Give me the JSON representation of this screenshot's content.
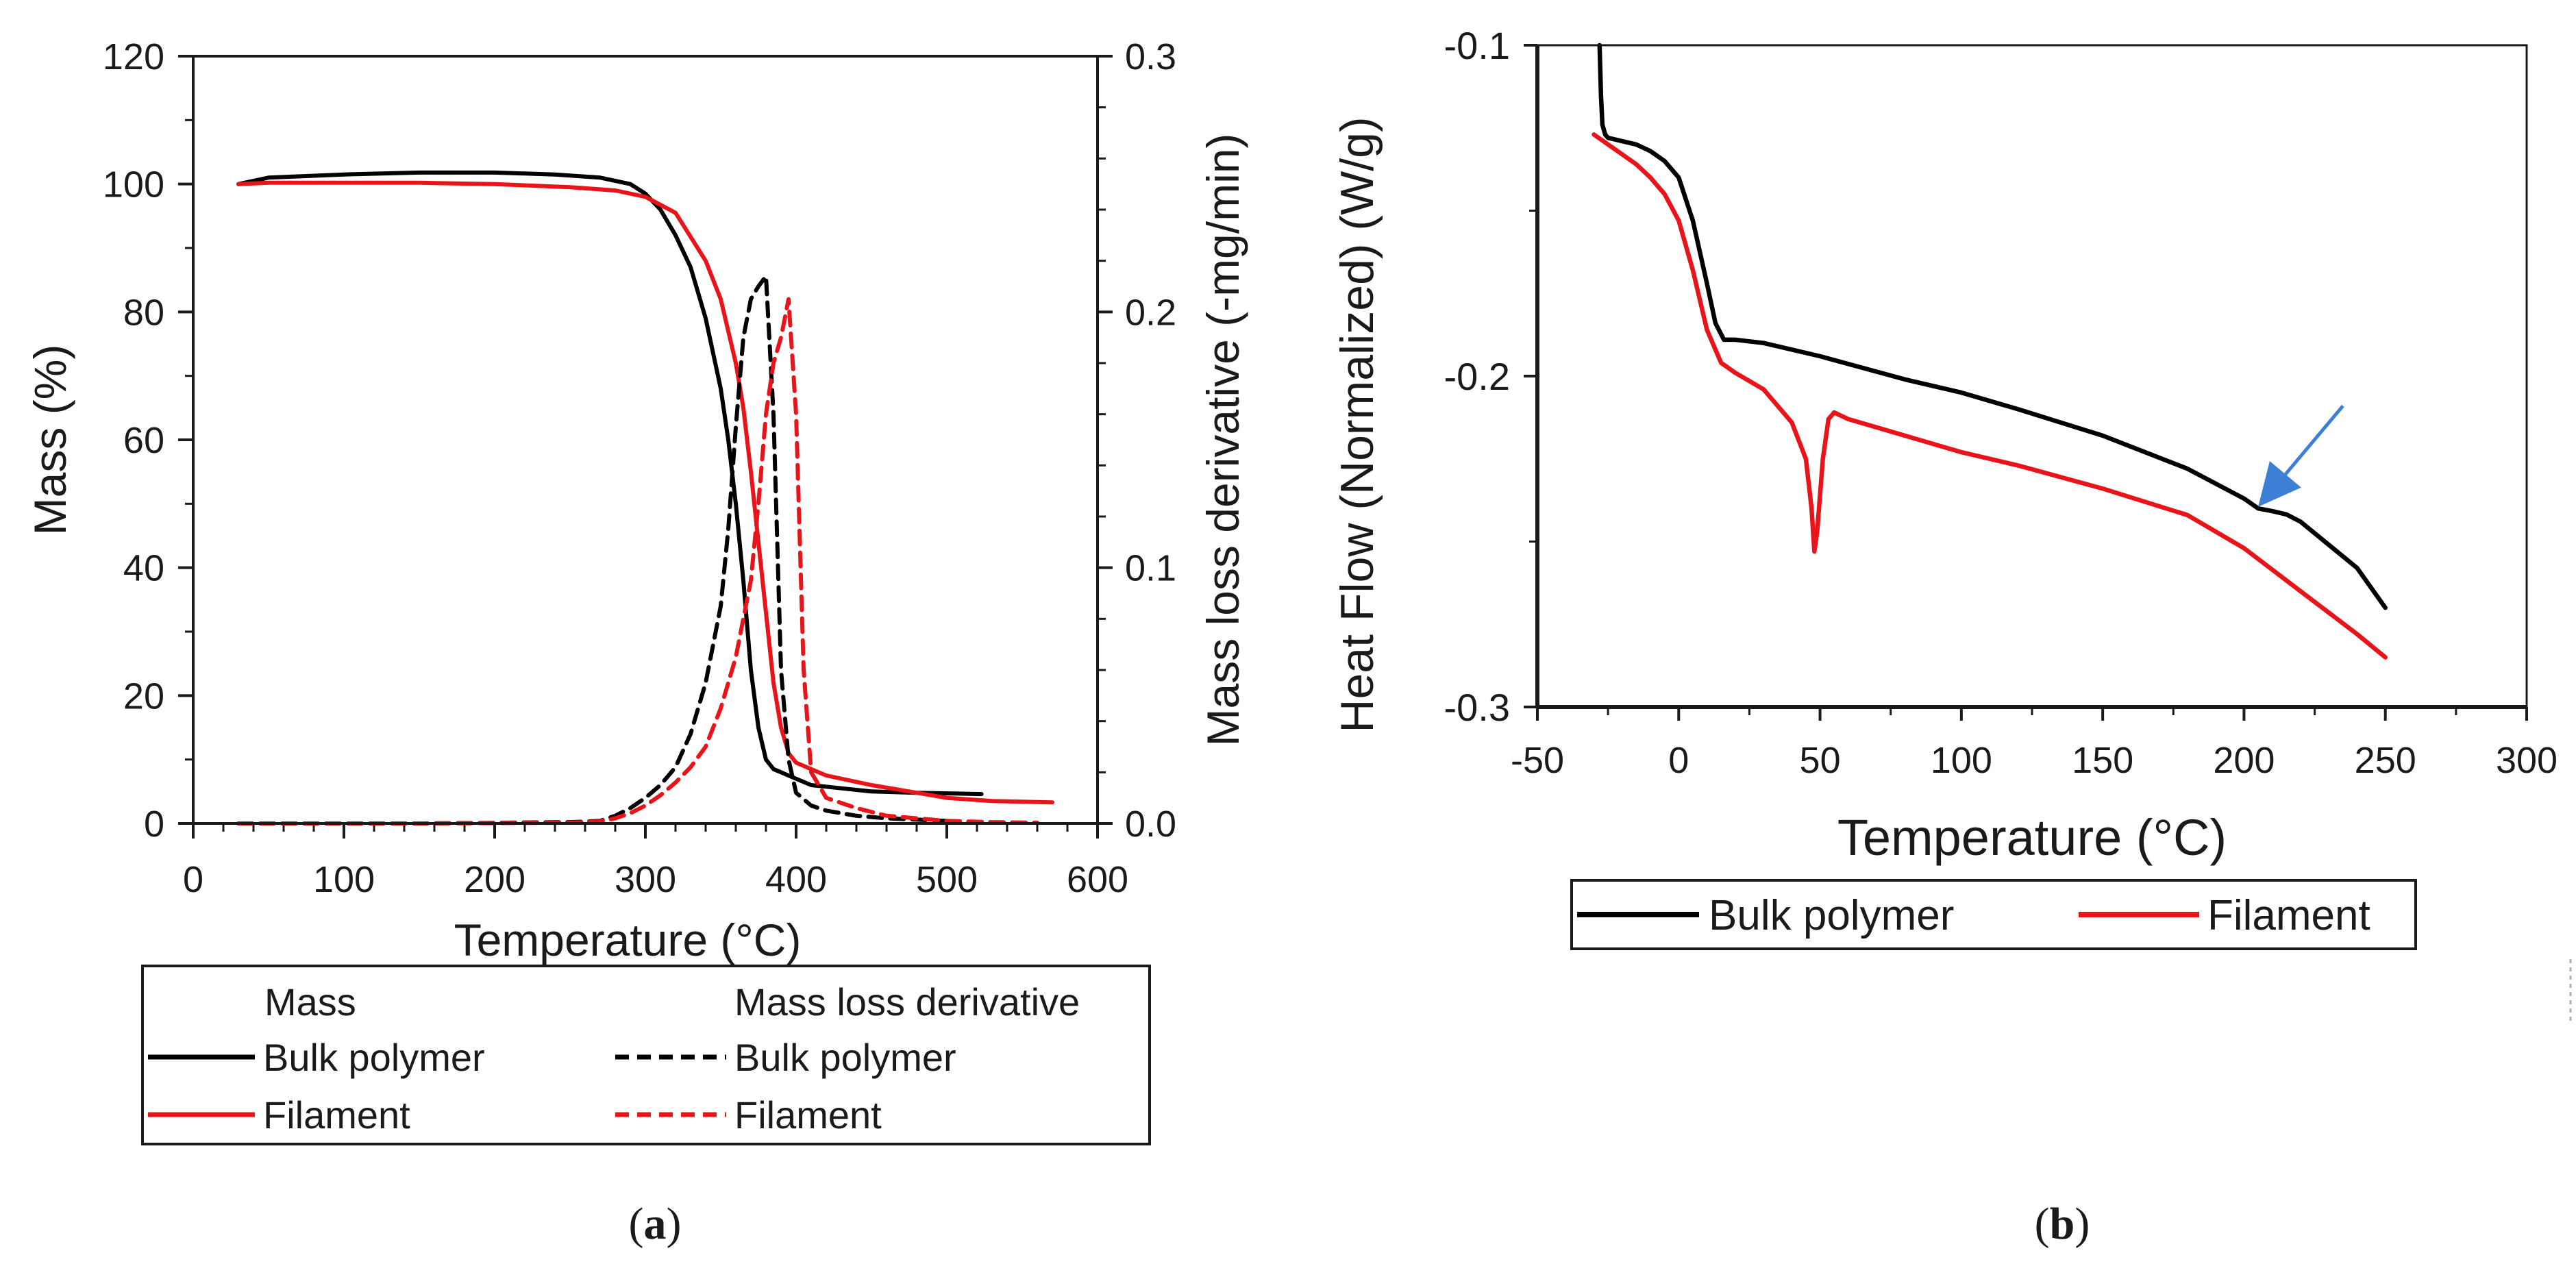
{
  "chart_data": [
    {
      "type": "line",
      "panel_label_prefix": "(",
      "panel_label_letter": "a",
      "panel_label_suffix": ")",
      "xlabel": "Temperature (°C)",
      "ylabel": "Mass (%)",
      "y2label": "Mass loss derivative (-mg/min)",
      "xlim": [
        0,
        600
      ],
      "ylim": [
        0,
        120
      ],
      "y2lim": [
        0,
        0.3
      ],
      "xticks": [
        "0",
        "100",
        "200",
        "300",
        "400",
        "500",
        "600"
      ],
      "yticks": [
        "0",
        "20",
        "40",
        "60",
        "80",
        "100",
        "120"
      ],
      "y2ticks": [
        "0.0",
        "0.1",
        "0.2",
        "0.3"
      ],
      "legend": {
        "col1_header": "Mass",
        "col2_header": "Mass loss derivative",
        "entries": [
          {
            "label": "Bulk polymer",
            "color": "#000000",
            "style": "solid"
          },
          {
            "label": "Filament",
            "color": "#e8141a",
            "style": "solid"
          },
          {
            "label": "Bulk polymer",
            "color": "#000000",
            "style": "dashed"
          },
          {
            "label": "Filament",
            "color": "#e8141a",
            "style": "dashed"
          }
        ]
      },
      "series": [
        {
          "name": "Mass – Bulk polymer",
          "axis": "left",
          "color": "#000000",
          "style": "solid",
          "x": [
            30,
            50,
            100,
            150,
            200,
            240,
            270,
            290,
            300,
            310,
            320,
            330,
            340,
            350,
            355,
            360,
            365,
            370,
            375,
            380,
            385,
            390,
            400,
            410,
            430,
            450,
            480,
            500,
            523
          ],
          "y": [
            100,
            101,
            101.5,
            101.8,
            101.8,
            101.5,
            101,
            100,
            98.5,
            96,
            92,
            87,
            79,
            68,
            60,
            50,
            38,
            24,
            15,
            10,
            8.5,
            8,
            7,
            6,
            5.5,
            5,
            4.8,
            4.7,
            4.6
          ]
        },
        {
          "name": "Mass – Filament",
          "axis": "left",
          "color": "#e8141a",
          "style": "solid",
          "x": [
            30,
            50,
            100,
            150,
            200,
            250,
            280,
            300,
            320,
            340,
            350,
            360,
            365,
            370,
            375,
            380,
            385,
            390,
            395,
            400,
            410,
            420,
            450,
            480,
            500,
            530,
            570
          ],
          "y": [
            100,
            100.2,
            100.2,
            100.2,
            100,
            99.5,
            99,
            98,
            95.5,
            88,
            82,
            72,
            65,
            55,
            44,
            33,
            22,
            15,
            11,
            9.5,
            8.5,
            7.5,
            6,
            4.8,
            4,
            3.5,
            3.3
          ]
        },
        {
          "name": "Mass loss derivative – Bulk polymer",
          "axis": "right",
          "color": "#000000",
          "style": "dashed",
          "x": [
            30,
            150,
            250,
            270,
            280,
            290,
            300,
            310,
            320,
            330,
            340,
            350,
            355,
            360,
            365,
            370,
            375,
            380,
            385,
            390,
            395,
            400,
            410,
            420,
            440,
            460,
            480,
            500
          ],
          "y": [
            0,
            0,
            0.0005,
            0.001,
            0.003,
            0.006,
            0.01,
            0.015,
            0.022,
            0.035,
            0.055,
            0.085,
            0.115,
            0.155,
            0.19,
            0.205,
            0.21,
            0.214,
            0.16,
            0.06,
            0.025,
            0.012,
            0.007,
            0.005,
            0.003,
            0.002,
            0.0015,
            0.001
          ]
        },
        {
          "name": "Mass loss derivative – Filament",
          "axis": "right",
          "color": "#e8141a",
          "style": "dashed",
          "x": [
            30,
            150,
            250,
            270,
            280,
            290,
            300,
            310,
            320,
            330,
            340,
            350,
            360,
            370,
            375,
            380,
            385,
            390,
            395,
            400,
            405,
            410,
            420,
            440,
            460,
            480,
            500,
            530,
            560
          ],
          "y": [
            0,
            0,
            0.0003,
            0.0008,
            0.002,
            0.004,
            0.007,
            0.011,
            0.016,
            0.022,
            0.03,
            0.045,
            0.065,
            0.095,
            0.125,
            0.16,
            0.18,
            0.19,
            0.205,
            0.16,
            0.06,
            0.02,
            0.01,
            0.006,
            0.003,
            0.002,
            0.001,
            0.0005,
            0.0003
          ]
        }
      ]
    },
    {
      "type": "line",
      "panel_label_prefix": "(",
      "panel_label_letter": "b",
      "panel_label_suffix": ")",
      "xlabel": "Temperature (°C)",
      "ylabel": "Heat Flow (Normalized) (W/g)",
      "xlim": [
        -50,
        300
      ],
      "ylim": [
        -0.3,
        -0.1
      ],
      "xticks": [
        "-50",
        "0",
        "50",
        "100",
        "150",
        "200",
        "250",
        "300"
      ],
      "yticks": [
        "-0.3",
        "-0.2",
        "-0.1"
      ],
      "annotations": [
        {
          "type": "arrow",
          "color": "#3d7fd6",
          "points_to": [
            205,
            -0.2395
          ],
          "from": [
            235,
            -0.209
          ]
        }
      ],
      "legend": {
        "entries": [
          {
            "label": "Bulk polymer",
            "color": "#000000",
            "style": "solid"
          },
          {
            "label": "Filament",
            "color": "#e8141a",
            "style": "solid"
          }
        ]
      },
      "series": [
        {
          "name": "Bulk polymer",
          "color": "#000000",
          "style": "solid",
          "x": [
            -28,
            -27.5,
            -27,
            -26,
            -25,
            -20,
            -15,
            -10,
            -5,
            0,
            5,
            10,
            13,
            16,
            20,
            30,
            50,
            80,
            100,
            120,
            150,
            180,
            200,
            205,
            210,
            215,
            220,
            230,
            240,
            245,
            250
          ],
          "y": [
            -0.1,
            -0.115,
            -0.124,
            -0.127,
            -0.128,
            -0.129,
            -0.13,
            -0.132,
            -0.135,
            -0.14,
            -0.153,
            -0.172,
            -0.184,
            -0.189,
            -0.189,
            -0.19,
            -0.194,
            -0.201,
            -0.205,
            -0.21,
            -0.218,
            -0.228,
            -0.237,
            -0.24,
            -0.2408,
            -0.2418,
            -0.244,
            -0.251,
            -0.258,
            -0.264,
            -0.27
          ]
        },
        {
          "name": "Filament",
          "color": "#e8141a",
          "style": "solid",
          "x": [
            -30,
            -25,
            -20,
            -15,
            -10,
            -5,
            0,
            5,
            10,
            15,
            20,
            30,
            40,
            45,
            47,
            48,
            49,
            51,
            53,
            55,
            60,
            80,
            100,
            120,
            150,
            180,
            200,
            220,
            240,
            250
          ],
          "y": [
            -0.127,
            -0.13,
            -0.133,
            -0.136,
            -0.14,
            -0.145,
            -0.153,
            -0.168,
            -0.186,
            -0.196,
            -0.199,
            -0.204,
            -0.214,
            -0.225,
            -0.24,
            -0.253,
            -0.247,
            -0.225,
            -0.213,
            -0.211,
            -0.213,
            -0.218,
            -0.223,
            -0.227,
            -0.234,
            -0.242,
            -0.252,
            -0.265,
            -0.278,
            -0.285
          ]
        }
      ]
    }
  ]
}
